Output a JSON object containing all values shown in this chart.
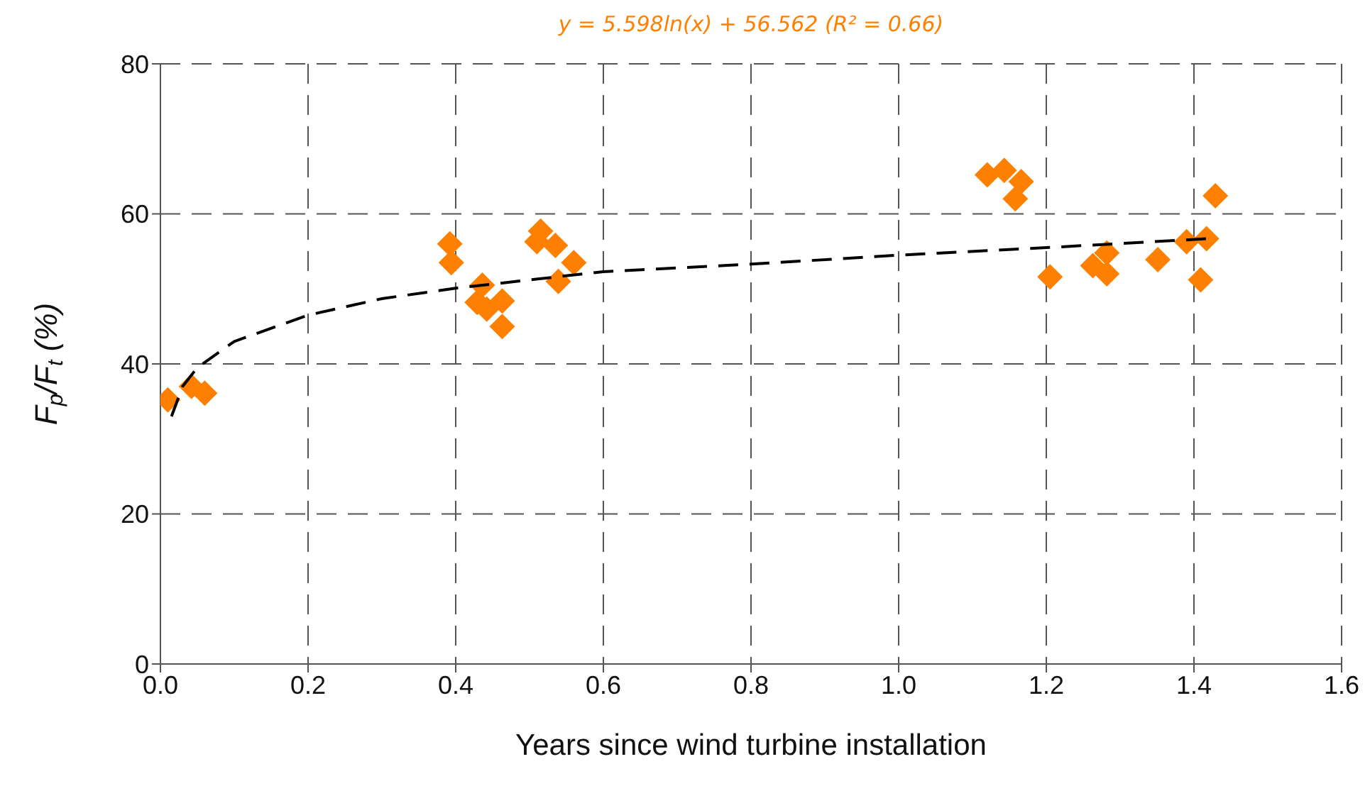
{
  "chart_data": {
    "type": "scatter",
    "title": "y = 5.598ln(x) + 56.562 (R² = 0.66)",
    "xlabel": "Years since wind turbine installation",
    "ylabel": "F$_{p}$/F$_{t}$ (%)",
    "xlim": [
      0,
      1.6
    ],
    "xticks": [
      {
        "value": 0,
        "label": "0.0"
      },
      0.2,
      0.4,
      0.6,
      0.8,
      {
        "value": 1,
        "label": "1.0"
      },
      1.2,
      1.4,
      1.6
    ],
    "ylim": [
      0,
      80
    ],
    "yticks": [
      0,
      20,
      40,
      60,
      80
    ],
    "grid": true,
    "series": [
      {
        "color": "#ff8000",
        "marker": "diamond",
        "x": [
          0.01,
          0.042,
          0.06,
          0.392,
          0.394,
          0.436,
          0.429,
          0.463,
          0.442,
          0.463,
          0.51,
          0.515,
          0.535,
          0.56,
          0.539,
          1.12,
          1.143,
          1.166,
          1.158,
          1.205,
          1.263,
          1.282,
          1.282,
          1.351,
          1.39,
          1.417,
          1.409,
          1.429
        ],
        "values": [
          35.2,
          37.0,
          36.1,
          56.0,
          53.5,
          50.5,
          48.2,
          48.4,
          47.3,
          45.0,
          56.3,
          57.7,
          55.8,
          53.5,
          51.0,
          65.2,
          65.8,
          64.3,
          62.0,
          51.6,
          53.1,
          54.8,
          52.0,
          53.9,
          56.3,
          56.7,
          51.2,
          62.4
        ]
      },
      {
        "type": "line",
        "color": "#000000",
        "marker": "none",
        "line_style": "dashed",
        "x": [
          0.015,
          0.03,
          0.05,
          0.1,
          0.2,
          0.3,
          0.4,
          0.6,
          0.8,
          1.0,
          1.2,
          1.42
        ],
        "values": [
          33,
          37,
          39.5,
          43,
          46.5,
          48.7,
          50.1,
          52.3,
          53.3,
          54.5,
          55.5,
          56.7
        ]
      }
    ]
  }
}
